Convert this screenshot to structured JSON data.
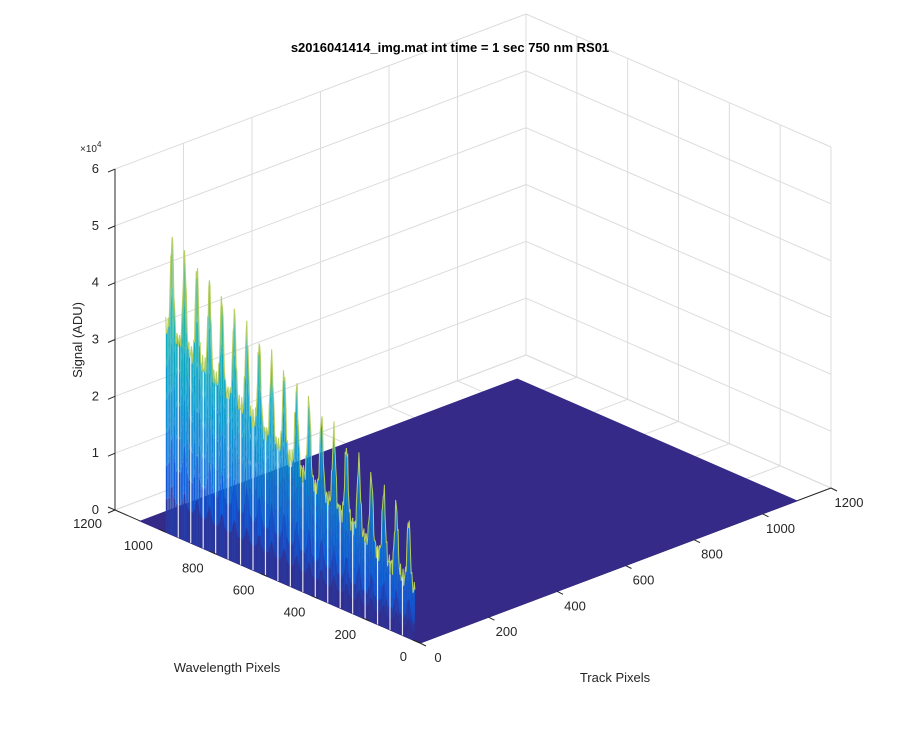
{
  "chart_data": {
    "type": "surface",
    "title": "s2016041414_img.mat int time = 1 sec  750 nm RS01",
    "xlabel": "Track Pixels",
    "ylabel": "Wavelength Pixels",
    "zlabel": "Signal (ADU)",
    "x_range": [
      0,
      1200
    ],
    "y_range": [
      0,
      1200
    ],
    "z_range": [
      0,
      60000
    ],
    "x_ticks": [
      "0",
      "200",
      "400",
      "600",
      "800",
      "1000",
      "1200"
    ],
    "y_ticks": [
      "0",
      "200",
      "400",
      "600",
      "800",
      "1000",
      "1200"
    ],
    "z_ticks": [
      "0",
      "1",
      "2",
      "3",
      "4",
      "5",
      "6"
    ],
    "z_exponent_base": "×10",
    "z_exponent_power": "4",
    "grid": true,
    "colormap": "parula",
    "floor_color": "#352a87",
    "surface": {
      "track_start": 0,
      "track_end": 1100,
      "wavelength_start": 0,
      "wavelength_end": 1100,
      "signal_region_wavelength": [
        20,
        1000
      ],
      "signal_region_track_edge": 0,
      "fiber_count": 20,
      "baseline": 500,
      "peak_signal_low_wavelength": 20000,
      "peak_signal_high_wavelength": 53000,
      "valley_signal_low_wavelength": 9000,
      "valley_signal_high_wavelength": 36000
    }
  }
}
